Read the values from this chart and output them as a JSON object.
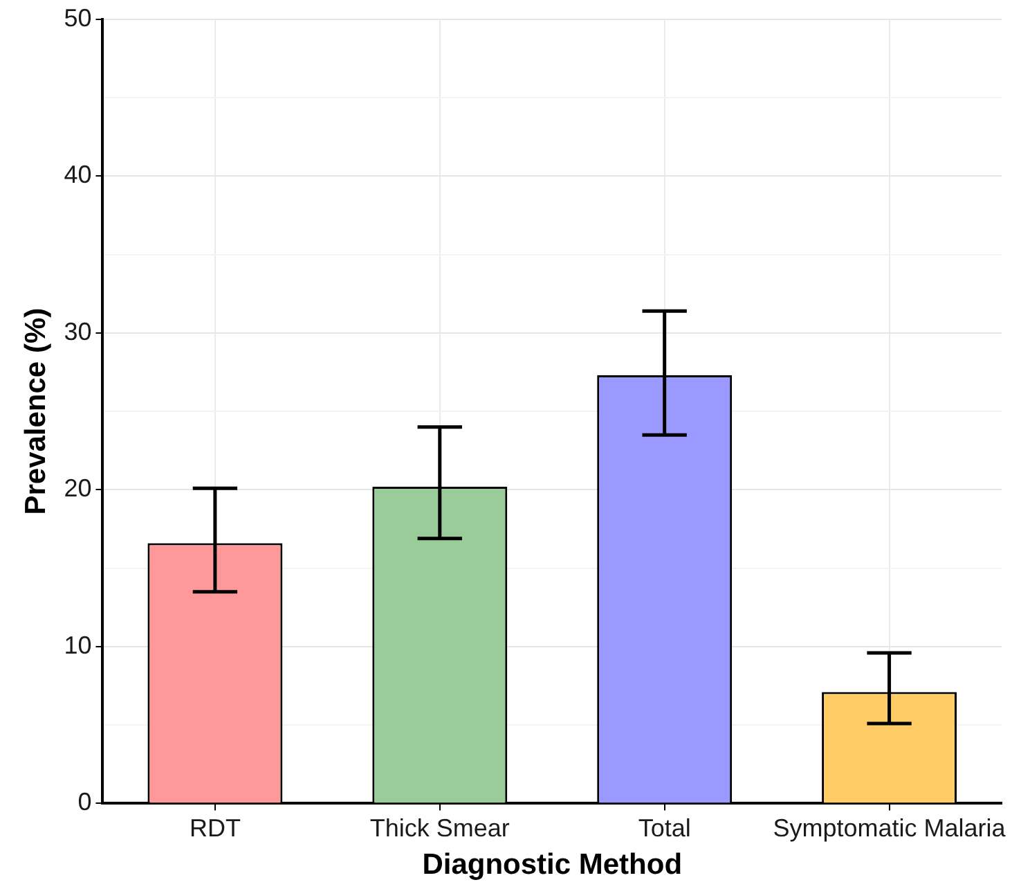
{
  "chart_data": {
    "type": "bar",
    "xlabel": "Diagnostic Method",
    "ylabel": "Prevalence (%)",
    "categories": [
      "RDT",
      "Thick Smear",
      "Total",
      "Symptomatic Malaria"
    ],
    "values": [
      16.6,
      20.2,
      27.3,
      7.1
    ],
    "colors": [
      "#ff9999",
      "#99cc99",
      "#9999ff",
      "#ffcc66"
    ],
    "errors": [
      [
        13.5,
        20.1
      ],
      [
        16.9,
        24.0
      ],
      [
        23.5,
        31.4
      ],
      [
        5.1,
        9.6
      ]
    ],
    "ylim": [
      0,
      50
    ],
    "yticks": [
      0,
      {
        "value": 5,
        "label": null
      },
      10,
      {
        "value": 15,
        "label": null
      },
      20,
      {
        "value": 25,
        "label": null
      },
      30,
      {
        "value": 35,
        "label": null
      },
      40,
      {
        "value": 45,
        "label": null
      },
      50
    ],
    "grid": true,
    "legend": false
  }
}
